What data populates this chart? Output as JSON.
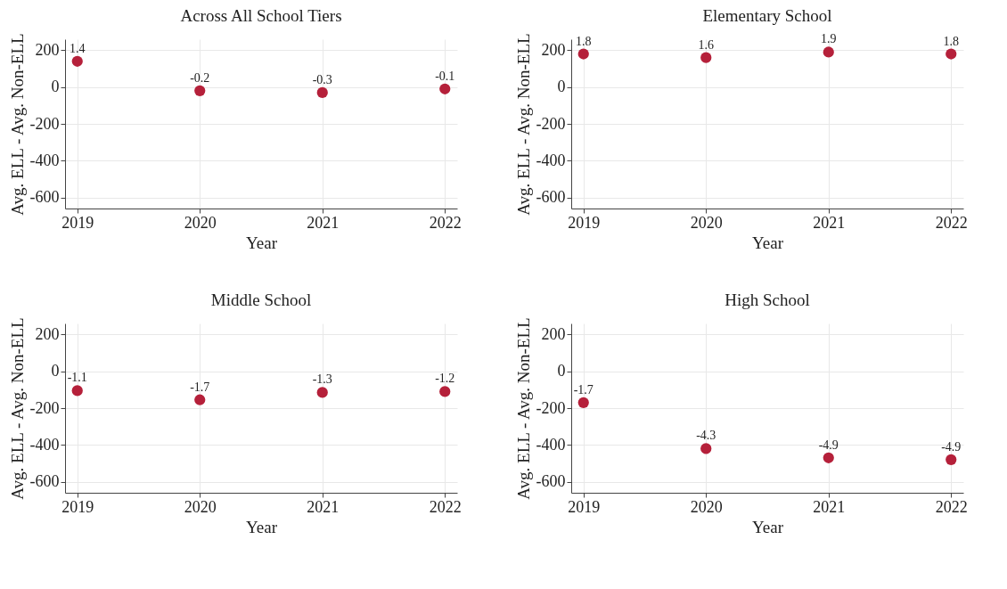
{
  "chart_data": [
    {
      "type": "scatter",
      "title": "Across All School Tiers",
      "xlabel": "Year",
      "ylabel": "Avg. ELL - Avg. Non-ELL",
      "x": [
        2019,
        2020,
        2021,
        2022
      ],
      "values": [
        140,
        -20,
        -30,
        -10
      ],
      "color": "#b5203a",
      "xlim": [
        2018.9,
        2022.1
      ],
      "ylim": [
        -660,
        260
      ],
      "xticks": [
        2019,
        2020,
        2021,
        2022
      ],
      "yticks": [
        -600,
        -400,
        -200,
        0,
        200
      ],
      "grid": true,
      "marker": "circle",
      "annotations": [
        {
          "text": "1.4",
          "x": 2019,
          "y": 140
        },
        {
          "text": "-0.2",
          "x": 2020,
          "y": -20
        },
        {
          "text": "-0.3",
          "x": 2021,
          "y": -30
        },
        {
          "text": "-0.1",
          "x": 2022,
          "y": -10
        }
      ]
    },
    {
      "type": "scatter",
      "title": "Elementary School",
      "xlabel": "Year",
      "ylabel": "Avg. ELL - Avg. Non-ELL",
      "x": [
        2019,
        2020,
        2021,
        2022
      ],
      "values": [
        180,
        160,
        190,
        180
      ],
      "color": "#b5203a",
      "xlim": [
        2018.9,
        2022.1
      ],
      "ylim": [
        -660,
        260
      ],
      "xticks": [
        2019,
        2020,
        2021,
        2022
      ],
      "yticks": [
        -600,
        -400,
        -200,
        0,
        200
      ],
      "grid": true,
      "marker": "circle",
      "annotations": [
        {
          "text": "1.8",
          "x": 2019,
          "y": 180
        },
        {
          "text": "1.6",
          "x": 2020,
          "y": 160
        },
        {
          "text": "1.9",
          "x": 2021,
          "y": 190
        },
        {
          "text": "1.8",
          "x": 2022,
          "y": 180
        }
      ]
    },
    {
      "type": "scatter",
      "title": "Middle School",
      "xlabel": "Year",
      "ylabel": "Avg. ELL - Avg. Non-ELL",
      "x": [
        2019,
        2020,
        2021,
        2022
      ],
      "values": [
        -105,
        -155,
        -115,
        -110
      ],
      "color": "#b5203a",
      "xlim": [
        2018.9,
        2022.1
      ],
      "ylim": [
        -660,
        260
      ],
      "xticks": [
        2019,
        2020,
        2021,
        2022
      ],
      "yticks": [
        -600,
        -400,
        -200,
        0,
        200
      ],
      "grid": true,
      "marker": "circle",
      "annotations": [
        {
          "text": "-1.1",
          "x": 2019,
          "y": -105
        },
        {
          "text": "-1.7",
          "x": 2020,
          "y": -155
        },
        {
          "text": "-1.3",
          "x": 2021,
          "y": -115
        },
        {
          "text": "-1.2",
          "x": 2022,
          "y": -110
        }
      ]
    },
    {
      "type": "scatter",
      "title": "High School",
      "xlabel": "Year",
      "ylabel": "Avg. ELL - Avg. Non-ELL",
      "x": [
        2019,
        2020,
        2021,
        2022
      ],
      "values": [
        -170,
        -420,
        -470,
        -480
      ],
      "color": "#b5203a",
      "xlim": [
        2018.9,
        2022.1
      ],
      "ylim": [
        -660,
        260
      ],
      "xticks": [
        2019,
        2020,
        2021,
        2022
      ],
      "yticks": [
        -600,
        -400,
        -200,
        0,
        200
      ],
      "grid": true,
      "marker": "circle",
      "annotations": [
        {
          "text": "-1.7",
          "x": 2019,
          "y": -170
        },
        {
          "text": "-4.3",
          "x": 2020,
          "y": -420
        },
        {
          "text": "-4.9",
          "x": 2021,
          "y": -470
        },
        {
          "text": "-4.9",
          "x": 2022,
          "y": -480
        }
      ]
    }
  ]
}
